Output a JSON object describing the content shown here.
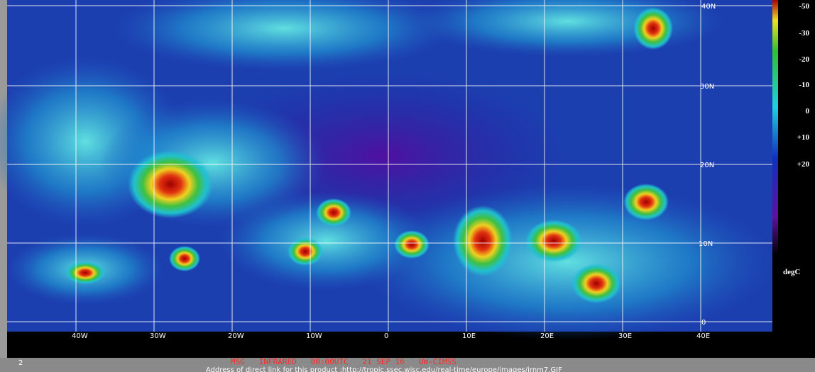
{
  "map": {
    "latitude_labels": [
      "40N",
      "30N",
      "20N",
      "10N",
      "0"
    ],
    "longitude_labels": [
      "40W",
      "30W",
      "20W",
      "10W",
      "0",
      "10E",
      "20E",
      "30E",
      "40E"
    ],
    "color_scale": {
      "labels": [
        "-50",
        "-30",
        "-20",
        "-10",
        "0",
        "+10",
        "+20"
      ],
      "unit": "degC"
    }
  },
  "footer": {
    "frame": "2",
    "caption": "MSG   INFRARED   00:00UTC   21 SEP 16   UW-CIMSS",
    "link": "Address of direct link for this product :http://tropic.ssec.wisc.edu/real-time/europe/images/irnm7.GIF"
  }
}
